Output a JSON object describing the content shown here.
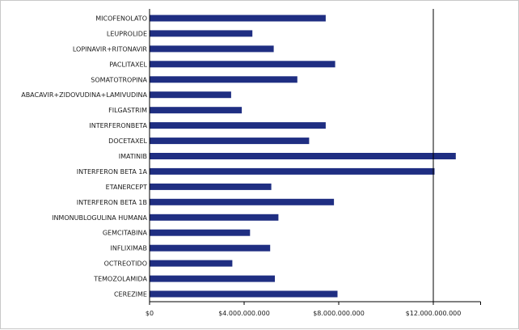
{
  "chart_data": {
    "type": "bar",
    "orientation": "horizontal",
    "categories": [
      "MICOFENOLATO",
      "LEUPROLIDE",
      "LOPINAVIR+RITONAVIR",
      "PACLITAXEL",
      "SOMATOTROPINA",
      "ABACAVIR+ZIDOVUDINA+LAMIVUDINA",
      "FILGASTRIM",
      "INTERFERONBETA",
      "DOCETAXEL",
      "IMATINIB",
      "INTERFERON BETA 1A",
      "ETANERCEPT",
      "INTERFERON BETA 1B",
      "INMONUBLOGULINA HUMANA",
      "GEMCITABINA",
      "INFLIXIMAB",
      "OCTREOTIDO",
      "TEMOZOLAMIDA",
      "CEREZIME"
    ],
    "values": [
      7450000000,
      4350000000,
      5250000000,
      7850000000,
      6250000000,
      3450000000,
      3900000000,
      7450000000,
      6750000000,
      12950000000,
      12050000000,
      5150000000,
      7800000000,
      5450000000,
      4250000000,
      5100000000,
      3500000000,
      5300000000,
      7950000000
    ],
    "xlim": [
      0,
      14000000000
    ],
    "xticks": [
      0,
      4000000000,
      8000000000,
      12000000000
    ],
    "xtick_labels": [
      "$0",
      "$4.000.000.000",
      "$8.000.000.000",
      "$12.000.000.000"
    ],
    "title": "",
    "xlabel": "",
    "ylabel": "",
    "grid": false,
    "reference_line_value": 12000000000,
    "bar_color": "#1f2e82",
    "axis_color": "#000000"
  }
}
